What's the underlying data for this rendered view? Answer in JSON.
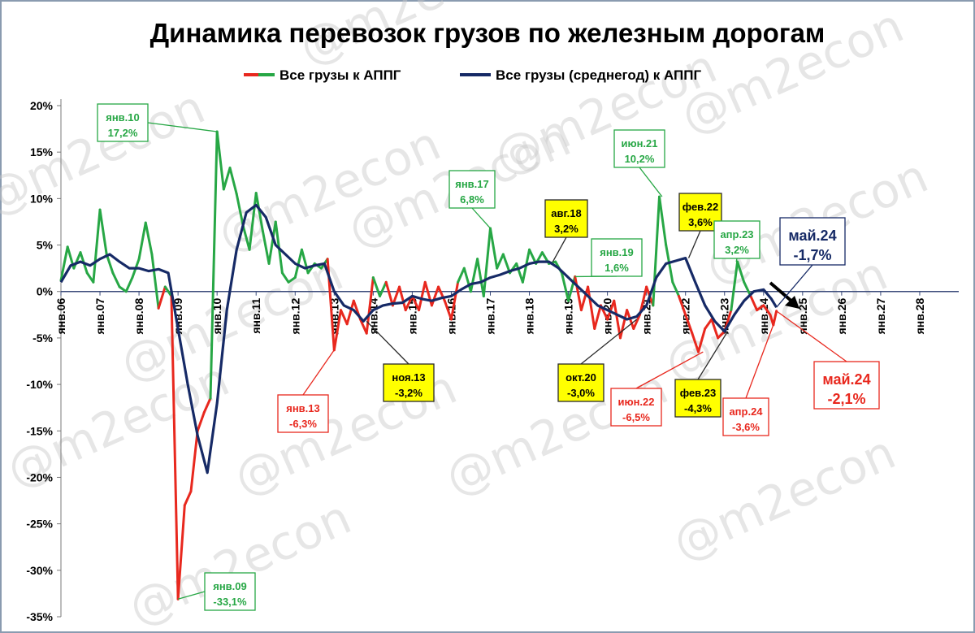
{
  "chart_data": {
    "type": "line",
    "title": "Динамика перевозок грузов по железным дорогам",
    "xlabel": "",
    "ylabel": "",
    "ylim": [
      -35,
      20
    ],
    "xlim": [
      2006.0,
      2029.0
    ],
    "y_ticks": [
      20,
      15,
      10,
      5,
      0,
      -5,
      -10,
      -15,
      -20,
      -25,
      -30,
      -35
    ],
    "y_tick_labels": [
      "20%",
      "15%",
      "10%",
      "5%",
      "0%",
      "-5%",
      "-10%",
      "-15%",
      "-20%",
      "-25%",
      "-30%",
      "-35%"
    ],
    "x_tick_labels": [
      "янв.06",
      "янв.07",
      "янв.08",
      "янв.09",
      "янв.10",
      "янв.11",
      "янв.12",
      "янв.13",
      "янв.14",
      "янв.15",
      "янв.16",
      "янв.17",
      "янв.18",
      "янв.19",
      "янв.20",
      "янв.21",
      "янв.22",
      "янв.23",
      "янв.24",
      "янв.25",
      "янв.26",
      "янв.27",
      "янв.28"
    ],
    "grid": false,
    "legend_position": "top",
    "colors": {
      "positive": "#27a745",
      "negative": "#e8281e",
      "avg": "#162a66"
    },
    "series": [
      {
        "name": "Все грузы к АППГ",
        "points": [
          [
            2006.0,
            1.2
          ],
          [
            2006.17,
            4.8
          ],
          [
            2006.33,
            2.5
          ],
          [
            2006.5,
            4.2
          ],
          [
            2006.67,
            2.0
          ],
          [
            2006.83,
            1.0
          ],
          [
            2007.0,
            8.8
          ],
          [
            2007.17,
            4.0
          ],
          [
            2007.33,
            2.0
          ],
          [
            2007.5,
            0.5
          ],
          [
            2007.67,
            0.0
          ],
          [
            2007.83,
            1.5
          ],
          [
            2008.0,
            3.5
          ],
          [
            2008.17,
            7.4
          ],
          [
            2008.33,
            4.0
          ],
          [
            2008.5,
            -1.8
          ],
          [
            2008.67,
            0.5
          ],
          [
            2008.83,
            -0.5
          ],
          [
            2009.0,
            -33.1
          ],
          [
            2009.17,
            -23.0
          ],
          [
            2009.33,
            -21.5
          ],
          [
            2009.5,
            -15.0
          ],
          [
            2009.67,
            -13.0
          ],
          [
            2009.83,
            -11.5
          ],
          [
            2010.0,
            17.2
          ],
          [
            2010.17,
            11.0
          ],
          [
            2010.33,
            13.3
          ],
          [
            2010.5,
            10.5
          ],
          [
            2010.67,
            7.0
          ],
          [
            2010.83,
            4.5
          ],
          [
            2011.0,
            10.6
          ],
          [
            2011.17,
            6.5
          ],
          [
            2011.33,
            3.0
          ],
          [
            2011.5,
            7.5
          ],
          [
            2011.67,
            2.0
          ],
          [
            2011.83,
            1.0
          ],
          [
            2012.0,
            1.5
          ],
          [
            2012.17,
            4.5
          ],
          [
            2012.33,
            2.0
          ],
          [
            2012.5,
            3.0
          ],
          [
            2012.67,
            2.5
          ],
          [
            2012.83,
            3.5
          ],
          [
            2013.0,
            -6.3
          ],
          [
            2013.17,
            -2.0
          ],
          [
            2013.33,
            -3.5
          ],
          [
            2013.5,
            -1.0
          ],
          [
            2013.67,
            -3.0
          ],
          [
            2013.83,
            -4.5
          ],
          [
            2014.0,
            1.5
          ],
          [
            2014.17,
            -0.5
          ],
          [
            2014.33,
            1.0
          ],
          [
            2014.5,
            -1.5
          ],
          [
            2014.67,
            0.5
          ],
          [
            2014.83,
            -2.0
          ],
          [
            2015.0,
            -0.5
          ],
          [
            2015.17,
            -2.0
          ],
          [
            2015.33,
            1.0
          ],
          [
            2015.5,
            -1.5
          ],
          [
            2015.67,
            0.5
          ],
          [
            2015.83,
            -1.0
          ],
          [
            2016.0,
            -3.0
          ],
          [
            2016.17,
            1.0
          ],
          [
            2016.33,
            2.5
          ],
          [
            2016.5,
            0.0
          ],
          [
            2016.67,
            3.5
          ],
          [
            2016.83,
            -0.5
          ],
          [
            2017.0,
            6.8
          ],
          [
            2017.17,
            2.5
          ],
          [
            2017.33,
            4.0
          ],
          [
            2017.5,
            2.0
          ],
          [
            2017.67,
            3.0
          ],
          [
            2017.83,
            1.0
          ],
          [
            2018.0,
            4.5
          ],
          [
            2018.17,
            3.0
          ],
          [
            2018.33,
            4.2
          ],
          [
            2018.5,
            3.0
          ],
          [
            2018.67,
            3.2
          ],
          [
            2018.83,
            2.0
          ],
          [
            2019.0,
            -1.0
          ],
          [
            2019.17,
            1.6
          ],
          [
            2019.33,
            -2.0
          ],
          [
            2019.5,
            0.5
          ],
          [
            2019.67,
            -4.0
          ],
          [
            2019.83,
            -1.5
          ],
          [
            2020.0,
            -3.0
          ],
          [
            2020.17,
            -1.0
          ],
          [
            2020.33,
            -5.0
          ],
          [
            2020.5,
            -2.0
          ],
          [
            2020.67,
            -4.0
          ],
          [
            2020.83,
            -2.5
          ],
          [
            2021.0,
            0.5
          ],
          [
            2021.17,
            -1.5
          ],
          [
            2021.33,
            10.2
          ],
          [
            2021.5,
            5.0
          ],
          [
            2021.67,
            1.0
          ],
          [
            2021.83,
            -0.5
          ],
          [
            2022.0,
            -2.5
          ],
          [
            2022.17,
            -4.5
          ],
          [
            2022.33,
            -6.5
          ],
          [
            2022.5,
            -4.0
          ],
          [
            2022.67,
            -3.0
          ],
          [
            2022.83,
            -5.0
          ],
          [
            2023.0,
            -4.3
          ],
          [
            2023.17,
            -2.0
          ],
          [
            2023.33,
            3.2
          ],
          [
            2023.5,
            1.0
          ],
          [
            2023.67,
            -0.5
          ],
          [
            2023.83,
            -2.0
          ],
          [
            2024.0,
            -1.5
          ],
          [
            2024.17,
            -2.5
          ],
          [
            2024.25,
            -3.6
          ],
          [
            2024.33,
            -2.1
          ]
        ]
      },
      {
        "name": "Все грузы (среднегод) к АППГ",
        "points": [
          [
            2006.0,
            1.0
          ],
          [
            2006.25,
            2.8
          ],
          [
            2006.5,
            3.2
          ],
          [
            2006.75,
            2.8
          ],
          [
            2007.0,
            3.5
          ],
          [
            2007.25,
            4.0
          ],
          [
            2007.5,
            3.2
          ],
          [
            2007.75,
            2.5
          ],
          [
            2008.0,
            2.5
          ],
          [
            2008.25,
            2.2
          ],
          [
            2008.5,
            2.4
          ],
          [
            2008.75,
            2.0
          ],
          [
            2009.0,
            -4.0
          ],
          [
            2009.25,
            -10.0
          ],
          [
            2009.5,
            -15.5
          ],
          [
            2009.75,
            -19.5
          ],
          [
            2010.0,
            -12.0
          ],
          [
            2010.25,
            -2.0
          ],
          [
            2010.5,
            4.5
          ],
          [
            2010.75,
            8.5
          ],
          [
            2011.0,
            9.3
          ],
          [
            2011.25,
            8.0
          ],
          [
            2011.5,
            5.0
          ],
          [
            2011.75,
            4.0
          ],
          [
            2012.0,
            3.0
          ],
          [
            2012.25,
            2.5
          ],
          [
            2012.5,
            2.8
          ],
          [
            2012.75,
            3.0
          ],
          [
            2013.0,
            0.0
          ],
          [
            2013.25,
            -1.5
          ],
          [
            2013.5,
            -2.0
          ],
          [
            2013.75,
            -3.2
          ],
          [
            2014.0,
            -2.0
          ],
          [
            2014.25,
            -1.5
          ],
          [
            2014.5,
            -1.3
          ],
          [
            2014.75,
            -1.2
          ],
          [
            2015.0,
            -0.5
          ],
          [
            2015.25,
            -0.8
          ],
          [
            2015.5,
            -1.0
          ],
          [
            2015.75,
            -0.7
          ],
          [
            2016.0,
            -0.5
          ],
          [
            2016.25,
            0.2
          ],
          [
            2016.5,
            0.8
          ],
          [
            2016.75,
            1.0
          ],
          [
            2017.0,
            1.5
          ],
          [
            2017.25,
            1.8
          ],
          [
            2017.5,
            2.2
          ],
          [
            2017.75,
            2.5
          ],
          [
            2018.0,
            3.0
          ],
          [
            2018.25,
            3.2
          ],
          [
            2018.5,
            3.2
          ],
          [
            2018.75,
            2.5
          ],
          [
            2019.0,
            1.5
          ],
          [
            2019.25,
            0.5
          ],
          [
            2019.5,
            -0.5
          ],
          [
            2019.75,
            -1.5
          ],
          [
            2020.0,
            -2.0
          ],
          [
            2020.25,
            -2.5
          ],
          [
            2020.5,
            -3.0
          ],
          [
            2020.75,
            -2.7
          ],
          [
            2021.0,
            -1.5
          ],
          [
            2021.25,
            1.5
          ],
          [
            2021.5,
            3.0
          ],
          [
            2021.75,
            3.3
          ],
          [
            2022.0,
            3.6
          ],
          [
            2022.25,
            1.0
          ],
          [
            2022.5,
            -1.5
          ],
          [
            2022.75,
            -3.2
          ],
          [
            2023.0,
            -4.3
          ],
          [
            2023.25,
            -2.5
          ],
          [
            2023.5,
            -1.0
          ],
          [
            2023.75,
            0.0
          ],
          [
            2024.0,
            0.2
          ],
          [
            2024.2,
            -0.8
          ],
          [
            2024.33,
            -1.7
          ]
        ]
      }
    ],
    "annotations": [
      {
        "lines": [
          "янв.10",
          "17,2%"
        ],
        "x": 2010.0,
        "y": 17.2,
        "style": "green"
      },
      {
        "lines": [
          "янв.09",
          "-33,1%"
        ],
        "x": 2009.0,
        "y": -33.1,
        "style": "green"
      },
      {
        "lines": [
          "янв.13",
          "-6,3%"
        ],
        "x": 2013.0,
        "y": -6.3,
        "style": "red"
      },
      {
        "lines": [
          "ноя.13",
          "-3,2%"
        ],
        "x": 2013.83,
        "y": -3.2,
        "style": "yellow"
      },
      {
        "lines": [
          "янв.17",
          "6,8%"
        ],
        "x": 2017.0,
        "y": 6.8,
        "style": "green"
      },
      {
        "lines": [
          "авг.18",
          "3,2%"
        ],
        "x": 2018.6,
        "y": 3.2,
        "style": "yellow"
      },
      {
        "lines": [
          "янв.19",
          "1,6%"
        ],
        "x": 2019.17,
        "y": 1.6,
        "style": "green"
      },
      {
        "lines": [
          "окт.20",
          "-3,0%"
        ],
        "x": 2020.75,
        "y": -3.0,
        "style": "yellow"
      },
      {
        "lines": [
          "июн.21",
          "10,2%"
        ],
        "x": 2021.4,
        "y": 10.2,
        "style": "green"
      },
      {
        "lines": [
          "фев.22",
          "3,6%"
        ],
        "x": 2022.08,
        "y": 3.6,
        "style": "yellow"
      },
      {
        "lines": [
          "июн.22",
          "-6,5%"
        ],
        "x": 2022.45,
        "y": -6.5,
        "style": "red"
      },
      {
        "lines": [
          "апр.23",
          "3,2%"
        ],
        "x": 2023.3,
        "y": 3.2,
        "style": "green"
      },
      {
        "lines": [
          "фев.23",
          "-4,3%"
        ],
        "x": 2023.08,
        "y": -4.3,
        "style": "yellow"
      },
      {
        "lines": [
          "май.24",
          "-1,7%"
        ],
        "x": 2024.33,
        "y": -1.7,
        "style": "navy"
      },
      {
        "lines": [
          "май.24",
          "-2,1%"
        ],
        "x": 2024.33,
        "y": -2.1,
        "style": "bigred"
      },
      {
        "lines": [
          "апр.24",
          "-3,6%"
        ],
        "x": 2024.25,
        "y": -3.6,
        "style": "red"
      }
    ],
    "watermark": "@m2econ"
  }
}
